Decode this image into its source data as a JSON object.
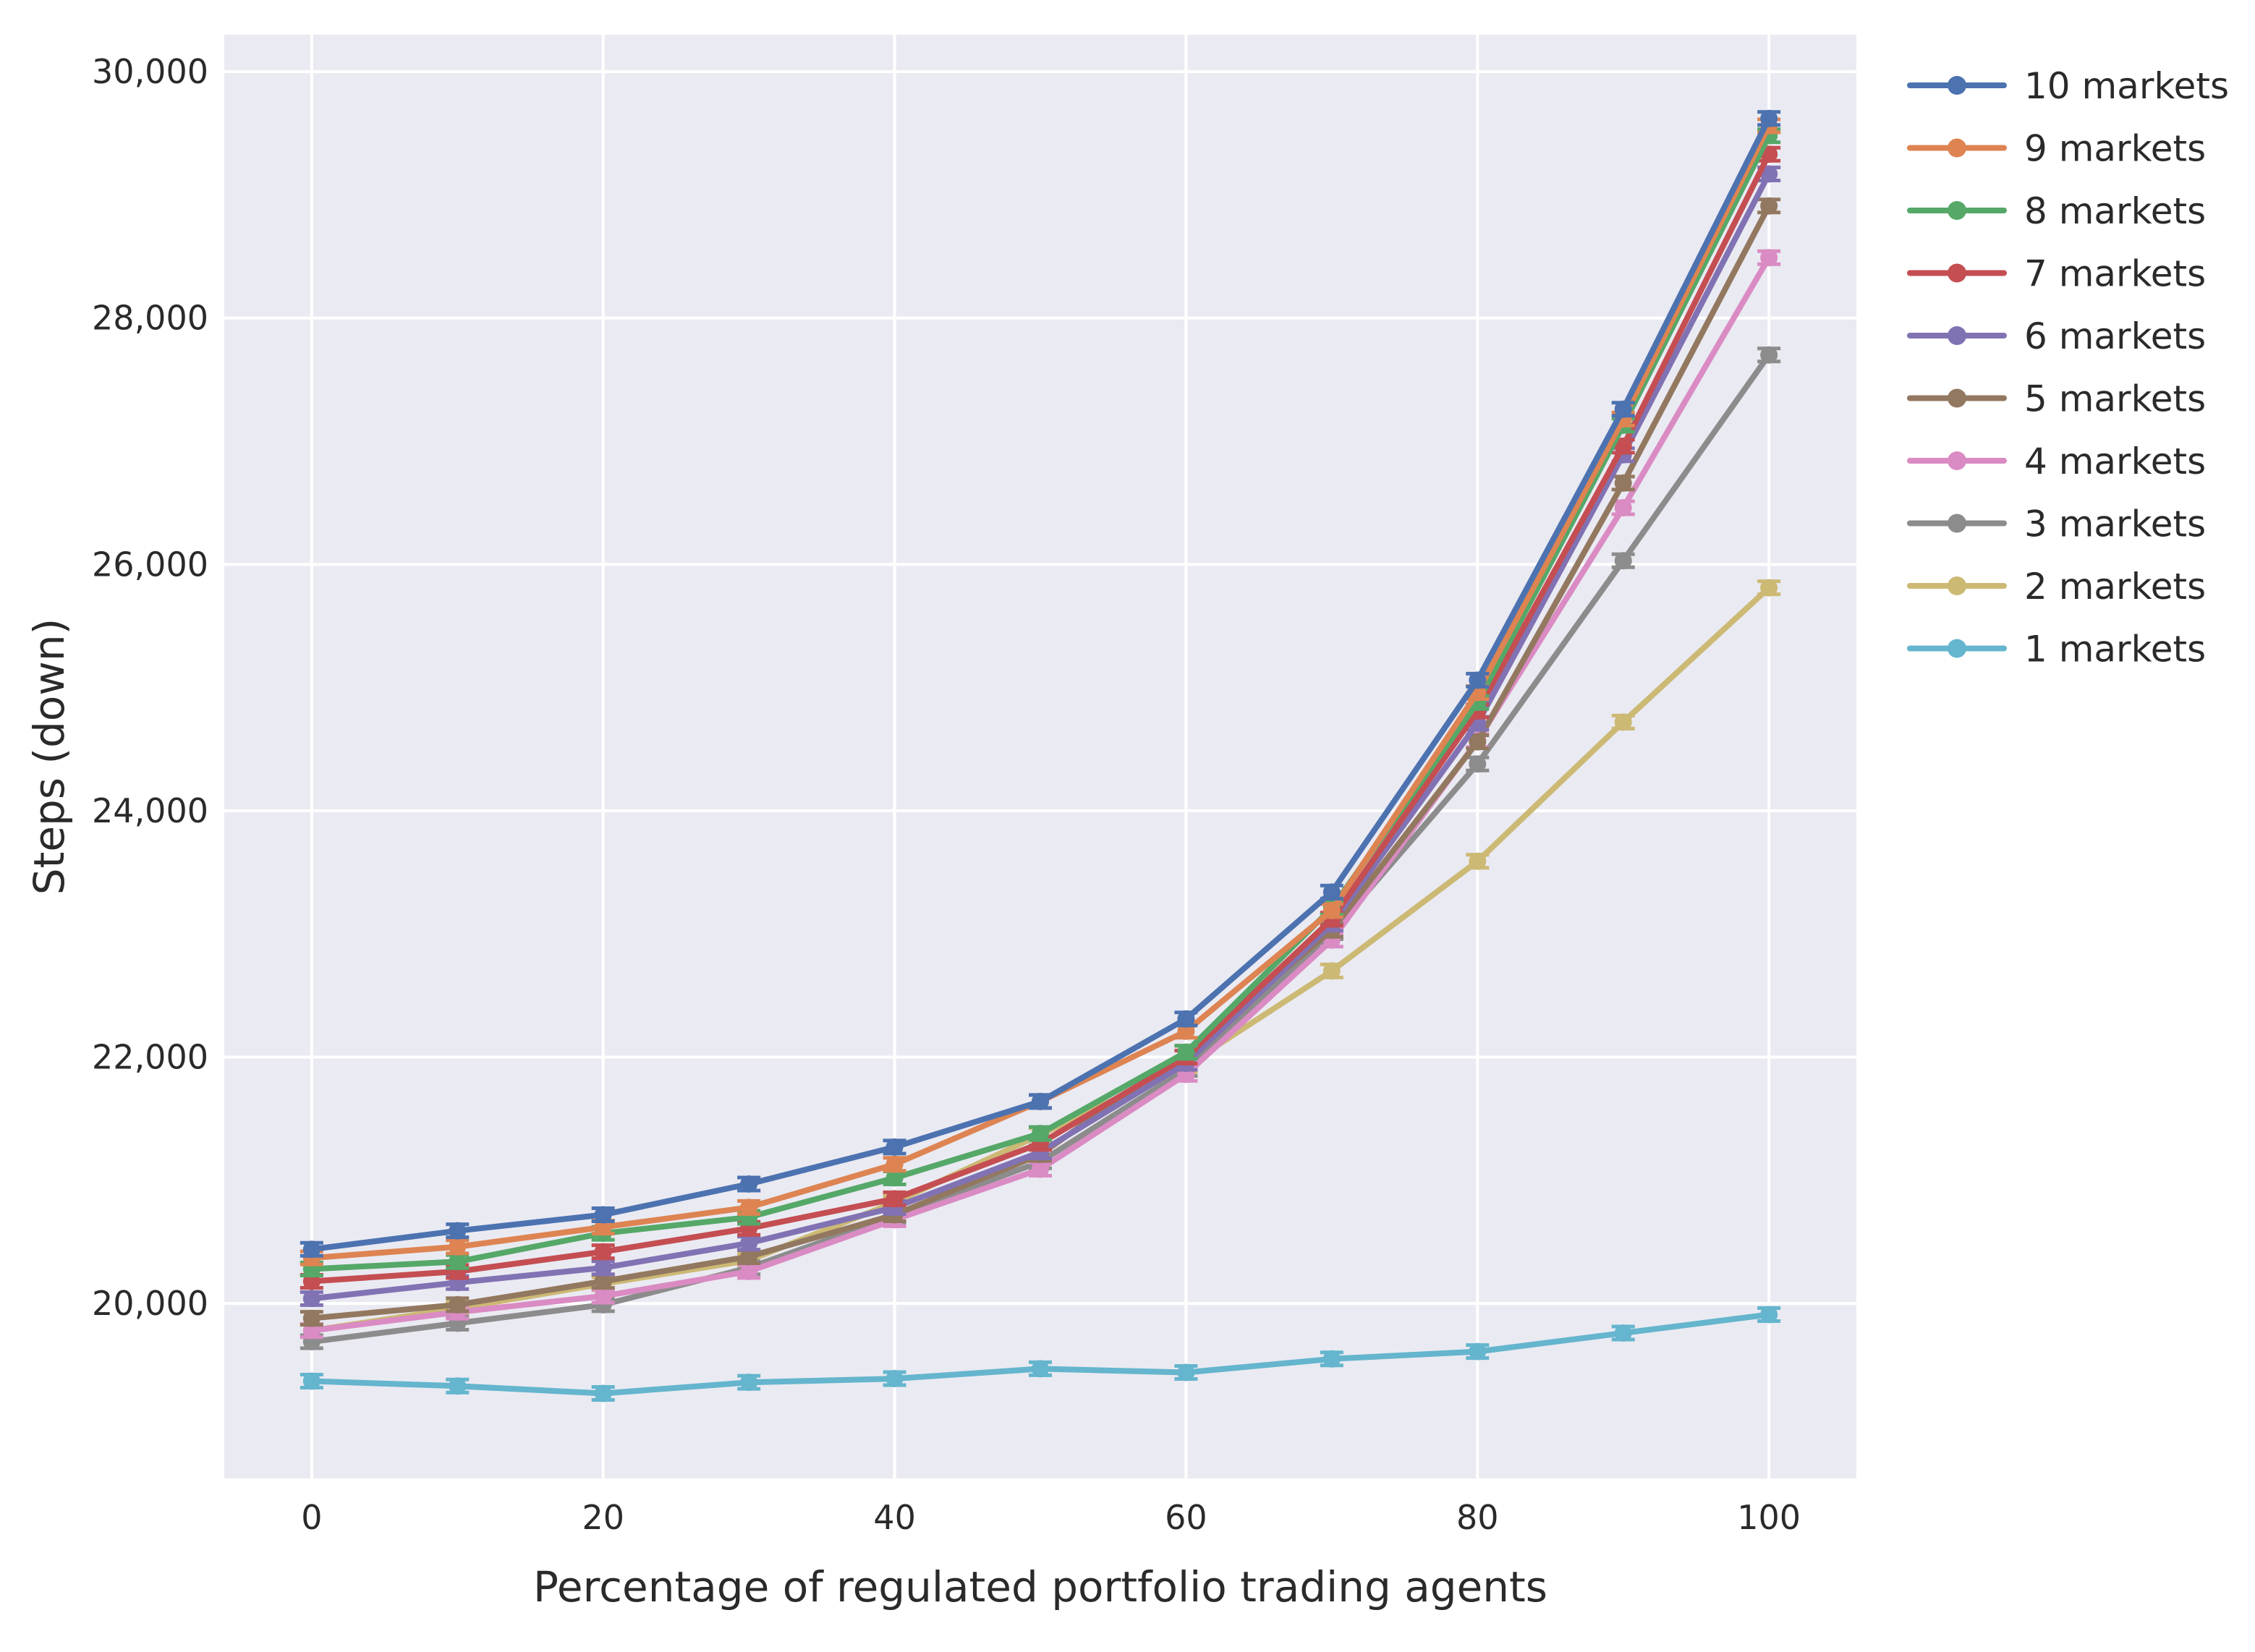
{
  "chart_data": {
    "type": "line",
    "title": "",
    "xlabel": "Percentage of regulated portfolio trading agents",
    "ylabel": "Steps (down)",
    "xlim": [
      -6,
      106
    ],
    "ylim": [
      18580,
      30300
    ],
    "xticks": [
      0,
      20,
      40,
      60,
      80,
      100
    ],
    "xtick_labels": [
      "0",
      "20",
      "40",
      "60",
      "80",
      "100"
    ],
    "yticks": [
      20000,
      22000,
      24000,
      26000,
      28000,
      30000
    ],
    "ytick_labels": [
      "20,000",
      "22,000",
      "24,000",
      "26,000",
      "28,000",
      "30,000"
    ],
    "grid": true,
    "legend_position": "right",
    "x": [
      0,
      10,
      20,
      30,
      40,
      50,
      60,
      70,
      80,
      90,
      100
    ],
    "series": [
      {
        "name": "10 markets",
        "color": "#4c72b0",
        "values": [
          20440,
          20590,
          20720,
          20970,
          21270,
          21640,
          22310,
          23340,
          25060,
          27260,
          29620
        ]
      },
      {
        "name": "9 markets",
        "color": "#dd8452",
        "values": [
          20370,
          20460,
          20620,
          20780,
          21130,
          21640,
          22210,
          23190,
          24960,
          27180,
          29560
        ]
      },
      {
        "name": "8 markets",
        "color": "#55a868",
        "values": [
          20280,
          20340,
          20570,
          20700,
          21020,
          21380,
          22040,
          23210,
          24880,
          27130,
          29480
        ]
      },
      {
        "name": "7 markets",
        "color": "#c44e52",
        "values": [
          20180,
          20260,
          20420,
          20610,
          20850,
          21300,
          22000,
          23120,
          24810,
          26960,
          29330
        ]
      },
      {
        "name": "6 markets",
        "color": "#8172b3",
        "values": [
          20040,
          20170,
          20290,
          20490,
          20780,
          21230,
          21950,
          23080,
          24710,
          26890,
          29170
        ]
      },
      {
        "name": "5 markets",
        "color": "#937860",
        "values": [
          19880,
          19990,
          20180,
          20380,
          20720,
          21210,
          22040,
          23030,
          24560,
          26660,
          28910
        ]
      },
      {
        "name": "4 markets",
        "color": "#da8bc3",
        "values": [
          19780,
          19930,
          20060,
          20260,
          20680,
          21090,
          21860,
          22950,
          24570,
          26460,
          28490
        ]
      },
      {
        "name": "3 markets",
        "color": "#8c8c8c",
        "values": [
          19690,
          19840,
          19990,
          20290,
          20710,
          21150,
          21900,
          23010,
          24380,
          26030,
          27700
        ]
      },
      {
        "name": "2 markets",
        "color": "#ccb974",
        "values": [
          19780,
          19960,
          20160,
          20350,
          20820,
          21370,
          21930,
          22700,
          23590,
          24720,
          25810
        ]
      },
      {
        "name": "1 markets",
        "color": "#64b5cd",
        "values": [
          19370,
          19330,
          19270,
          19360,
          19390,
          19470,
          19440,
          19550,
          19610,
          19760,
          19910
        ]
      }
    ]
  }
}
